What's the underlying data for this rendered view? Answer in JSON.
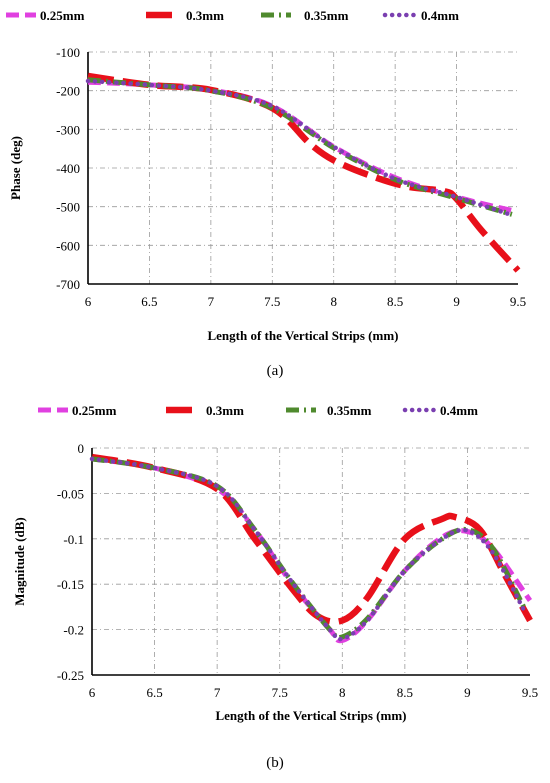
{
  "chart_data": [
    {
      "type": "line",
      "caption": "(a)",
      "xlabel": "Length of the Vertical Strips (mm)",
      "ylabel": "Phase (deg)",
      "xlim": [
        6,
        9.5
      ],
      "ylim": [
        -700,
        -100
      ],
      "x_ticks": [
        "6",
        "6.5",
        "7",
        "7.5",
        "8",
        "8.5",
        "9",
        "9.5"
      ],
      "y_ticks": [
        "-100",
        "-200",
        "-300",
        "-400",
        "-500",
        "-600",
        "-700"
      ],
      "grid": true,
      "legend_position": "top",
      "series": [
        {
          "name": "0.25mm",
          "color": "#e040e0",
          "style": "dash",
          "x": [
            6,
            6.5,
            7,
            7.5,
            8,
            8.5,
            9,
            9.45
          ],
          "y": [
            -178,
            -185,
            -198,
            -240,
            -345,
            -425,
            -475,
            -510
          ]
        },
        {
          "name": "0.3mm",
          "color": "#e8101a",
          "style": "longdash",
          "x": [
            6,
            6.5,
            7,
            7.5,
            7.8,
            8,
            8.3,
            8.6,
            8.9,
            9.0,
            9.2,
            9.5
          ],
          "y": [
            -162,
            -185,
            -198,
            -245,
            -335,
            -380,
            -420,
            -448,
            -460,
            -480,
            -560,
            -665
          ]
        },
        {
          "name": "0.35mm",
          "color": "#4f8a2e",
          "style": "dashdot",
          "x": [
            6,
            6.5,
            7,
            7.5,
            8,
            8.5,
            9,
            9.45
          ],
          "y": [
            -172,
            -185,
            -200,
            -245,
            -348,
            -430,
            -478,
            -520
          ]
        },
        {
          "name": "0.4mm",
          "color": "#7a3fb0",
          "style": "dot",
          "x": [
            6,
            6.5,
            7,
            7.5,
            8,
            8.5,
            9,
            9.45
          ],
          "y": [
            -175,
            -185,
            -200,
            -240,
            -345,
            -428,
            -475,
            -522
          ]
        }
      ]
    },
    {
      "type": "line",
      "caption": "(b)",
      "xlabel": "Length of the Vertical Strips (mm)",
      "ylabel": "Magnitude (dB)",
      "xlim": [
        6,
        9.5
      ],
      "ylim": [
        -0.25,
        0
      ],
      "x_ticks": [
        "6",
        "6.5",
        "7",
        "7.5",
        "8",
        "8.5",
        "9",
        "9.5"
      ],
      "y_ticks": [
        "0",
        "-0.05",
        "-0.1",
        "-0.15",
        "-0.2",
        "-0.25"
      ],
      "grid": true,
      "legend_position": "top",
      "series": [
        {
          "name": "0.25mm",
          "color": "#e040e0",
          "style": "dash",
          "x": [
            6,
            6.5,
            7,
            7.3,
            7.6,
            7.9,
            8,
            8.2,
            8.5,
            8.8,
            9,
            9.2,
            9.5
          ],
          "y": [
            -0.012,
            -0.022,
            -0.045,
            -0.09,
            -0.15,
            -0.2,
            -0.212,
            -0.19,
            -0.135,
            -0.098,
            -0.092,
            -0.11,
            -0.168
          ]
        },
        {
          "name": "0.3mm",
          "color": "#e8101a",
          "style": "longdash",
          "x": [
            6,
            6.5,
            7,
            7.3,
            7.6,
            7.8,
            8,
            8.2,
            8.5,
            8.8,
            8.9,
            9.1,
            9.3,
            9.5
          ],
          "y": [
            -0.01,
            -0.022,
            -0.045,
            -0.1,
            -0.155,
            -0.185,
            -0.19,
            -0.165,
            -0.1,
            -0.078,
            -0.076,
            -0.09,
            -0.14,
            -0.19
          ]
        },
        {
          "name": "0.35mm",
          "color": "#4f8a2e",
          "style": "dashdot",
          "x": [
            6,
            6.5,
            7,
            7.3,
            7.6,
            7.9,
            8,
            8.2,
            8.5,
            8.8,
            9,
            9.2,
            9.45
          ],
          "y": [
            -0.012,
            -0.022,
            -0.042,
            -0.09,
            -0.148,
            -0.2,
            -0.208,
            -0.188,
            -0.135,
            -0.1,
            -0.09,
            -0.11,
            -0.175
          ]
        },
        {
          "name": "0.4mm",
          "color": "#7a3fb0",
          "style": "dot",
          "x": [
            6,
            6.5,
            7,
            7.3,
            7.6,
            7.9,
            8,
            8.2,
            8.5,
            8.8,
            9,
            9.2,
            9.45
          ],
          "y": [
            -0.012,
            -0.022,
            -0.042,
            -0.09,
            -0.148,
            -0.2,
            -0.21,
            -0.19,
            -0.135,
            -0.1,
            -0.091,
            -0.115,
            -0.178
          ]
        }
      ]
    }
  ]
}
